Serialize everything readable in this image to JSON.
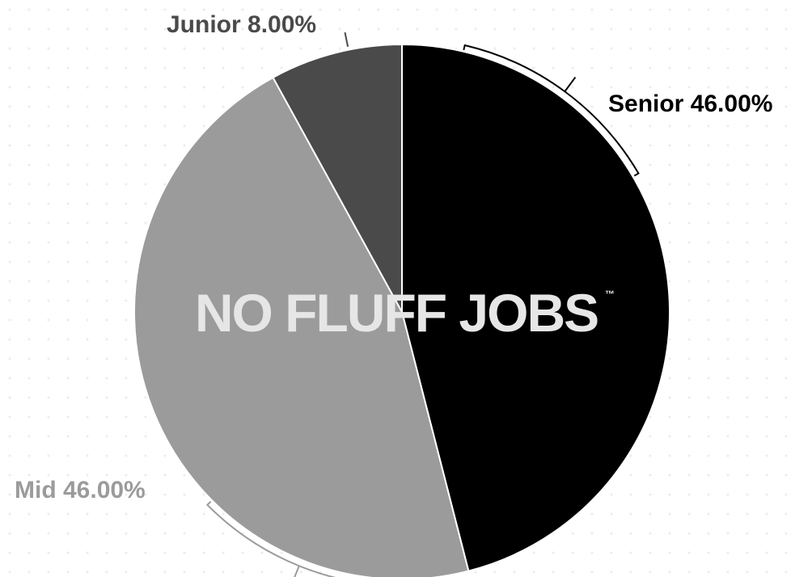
{
  "chart_data": {
    "type": "pie",
    "title": "",
    "slices": [
      {
        "name": "Senior",
        "value": 46.0,
        "label": "Senior 46.00%",
        "color": "#000000",
        "label_color": "#000000"
      },
      {
        "name": "Mid",
        "value": 46.0,
        "label": "Mid 46.00%",
        "color": "#9b9b9b",
        "label_color": "#9b9b9b"
      },
      {
        "name": "Junior",
        "value": 8.0,
        "label": "Junior 8.00%",
        "color": "#4a4a4a",
        "label_color": "#4a4a4a"
      }
    ],
    "start_angle_deg": 0,
    "direction": "clockwise",
    "slice_border_color": "#ffffff"
  },
  "watermark": {
    "text": "NO FLUFF JOBS",
    "trademark": "™",
    "color": "#e6e6e6"
  }
}
